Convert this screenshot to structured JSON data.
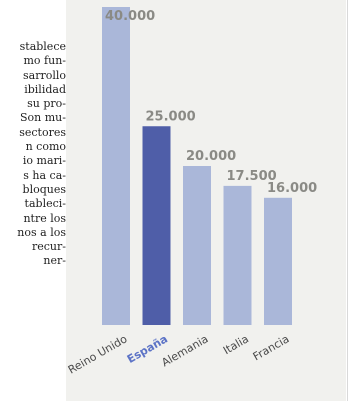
{
  "article": {
    "lines": [
      "stablece",
      "mo fun-",
      "sarrollo",
      "ibilidad",
      "su pro-",
      "Son mu-",
      "sectores",
      "n como",
      "io mari-",
      "s ha ca-",
      "bloques",
      "tableci-",
      "ntre los",
      "nos a los",
      "recur-",
      "ner-"
    ]
  },
  "chart_data": {
    "type": "bar",
    "categories": [
      "Reino Unido",
      "España",
      "Alemania",
      "Italia",
      "Francia"
    ],
    "values": [
      40000,
      25000,
      20000,
      17500,
      16000
    ],
    "value_labels": [
      "40.000",
      "25.000",
      "20.000",
      "17.500",
      "16.000"
    ],
    "highlight_category": "España",
    "ylim": [
      0,
      40000
    ],
    "grid": false,
    "colors": {
      "bar": "#aab7d9",
      "highlight_bar": "#4f5ea8",
      "value_label": "#8a8a85",
      "category_label": "#4a4a4a",
      "highlight_label": "#5c73c6",
      "panel": "#f1f1ee"
    }
  }
}
